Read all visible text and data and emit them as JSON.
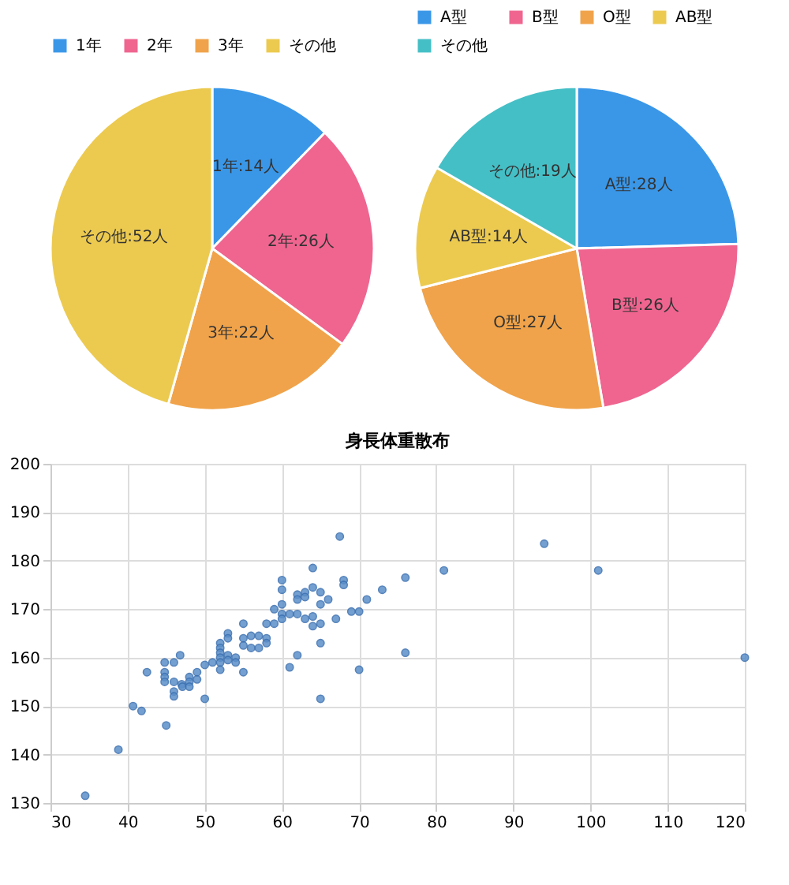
{
  "chart_data": [
    {
      "type": "pie",
      "categories": [
        "1年",
        "2年",
        "3年",
        "その他"
      ],
      "values": [
        14,
        26,
        22,
        52
      ],
      "colors": [
        "#3a97e8",
        "#ef6590",
        "#f0a34a",
        "#ecca50"
      ],
      "value_labels": [
        "1年:14人",
        "2年:26人",
        "3年:22人",
        "その他:52人"
      ],
      "legend": "top"
    },
    {
      "type": "pie",
      "categories": [
        "A型",
        "B型",
        "O型",
        "AB型",
        "その他"
      ],
      "values": [
        28,
        26,
        27,
        14,
        19
      ],
      "colors": [
        "#3a97e8",
        "#ef6590",
        "#f0a34a",
        "#ecca50",
        "#45bfc6"
      ],
      "value_labels": [
        "A型:28人",
        "B型:26人",
        "O型:27人",
        "AB型:14人",
        "その他:19人"
      ],
      "legend": "top"
    },
    {
      "type": "scatter",
      "title": "身長体重散布",
      "xlim": [
        30,
        120
      ],
      "xticks": [
        30,
        40,
        50,
        60,
        70,
        80,
        90,
        100,
        110,
        120
      ],
      "ylim": [
        130,
        200
      ],
      "yticks": [
        130,
        140,
        150,
        160,
        170,
        180,
        190,
        200
      ],
      "grid": true,
      "marker": "circle",
      "series": [
        {
          "color": "#5b8fc9",
          "x": [
            34.5,
            38.8,
            40.7,
            41.8,
            42.5,
            45,
            44.8,
            44.8,
            44.8,
            44.8,
            46,
            46,
            46,
            46,
            46.8,
            47,
            47.1,
            48,
            48,
            48,
            49,
            49,
            50,
            50,
            51,
            52,
            52,
            52,
            52,
            52,
            52,
            53,
            53,
            53,
            53,
            54,
            54,
            55,
            55,
            55,
            55,
            56,
            56,
            57,
            57,
            58,
            58,
            58,
            59,
            59,
            60,
            60,
            60,
            60,
            60,
            61,
            61,
            62,
            62,
            62,
            62,
            63,
            63,
            63,
            64,
            64,
            64,
            64,
            65,
            65,
            65,
            65,
            65,
            66,
            67,
            68,
            68,
            69,
            70,
            70,
            67.5,
            71,
            73,
            76,
            81,
            94,
            101,
            76,
            120
          ],
          "values": [
            131.5,
            141,
            150,
            149,
            157,
            146,
            159,
            157,
            156,
            155,
            159,
            155,
            153,
            152,
            160.5,
            154.5,
            154,
            156,
            155,
            154,
            157,
            155.5,
            158.5,
            151.5,
            159,
            163,
            162,
            161,
            160,
            159,
            157.5,
            165,
            164,
            160.5,
            159.5,
            160,
            159,
            167,
            164,
            162.5,
            157,
            164.5,
            162,
            164.5,
            162,
            164,
            163,
            167,
            167,
            170,
            176,
            174,
            171,
            169,
            168,
            169,
            158,
            173,
            172,
            169,
            160.5,
            173.5,
            172.5,
            168,
            178.5,
            174.5,
            168.5,
            166.5,
            173.5,
            171,
            167,
            163,
            151.5,
            172,
            168,
            176,
            175,
            169.5,
            169.5,
            157.5,
            185,
            172,
            174,
            176.5,
            178,
            183.5,
            178,
            161,
            160
          ]
        }
      ]
    }
  ]
}
